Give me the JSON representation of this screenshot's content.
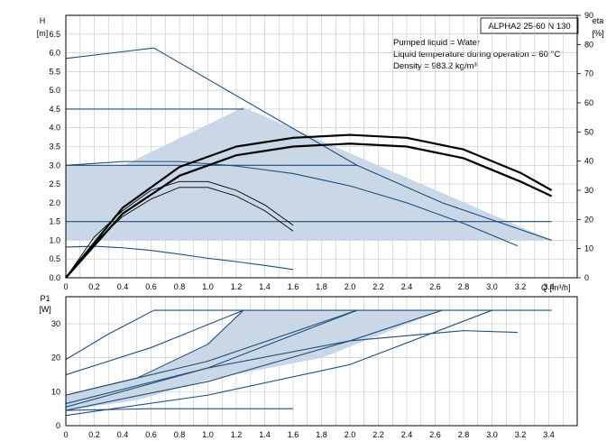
{
  "chart_data": [
    {
      "type": "line",
      "title": "ALPHA2 25-60 N 130",
      "annotations": [
        "Pumped liquid = Water",
        "Liquid temperature during operation = 60 °C",
        "Density = 983.2 kg/m³"
      ],
      "xlabel": "Q [m³/h]",
      "ylabel": "H",
      "ylabel_unit": "[m]",
      "y2label": "eta",
      "y2label_unit": "[%]",
      "xlim": [
        0,
        3.6
      ],
      "ylim": [
        0,
        7.0
      ],
      "y2lim": [
        0,
        90
      ],
      "x_ticks": [
        "0",
        "0.2",
        "0.4",
        "0.6",
        "0.8",
        "1.0",
        "1.2",
        "1.4",
        "1.6",
        "1.8",
        "2.0",
        "2.2",
        "2.4",
        "2.6",
        "2.8",
        "3.0",
        "3.2",
        "3.4"
      ],
      "y_ticks": [
        "0.0",
        "0.5",
        "1.0",
        "1.5",
        "2.0",
        "2.5",
        "3.0",
        "3.5",
        "4.0",
        "4.5",
        "5.0",
        "5.5",
        "6.0",
        "6.5"
      ],
      "y2_ticks": [
        "0",
        "10",
        "20",
        "30",
        "40",
        "50",
        "60",
        "70",
        "80",
        "90"
      ],
      "grid": true,
      "shaded_regions": [
        {
          "name": "",
          "x": [
            0,
            1.25,
            3.42,
            0
          ],
          "y": [
            2.25,
            4.55,
            1.0,
            1.0
          ]
        },
        {
          "name": "",
          "x": [
            0,
            2.05,
            0
          ],
          "y": [
            1.55,
            3.0,
            3.0
          ]
        }
      ],
      "series": [
        {
          "x": [
            0,
            0.62
          ],
          "y": [
            5.85,
            6.13
          ],
          "axis": "H"
        },
        {
          "x": [
            0.62,
            1.5,
            2.05,
            2.65,
            3.42
          ],
          "y": [
            6.13,
            4.2,
            3.0,
            2.0,
            1.0
          ],
          "axis": "H"
        },
        {
          "x": [
            0,
            1.25
          ],
          "y": [
            4.5,
            4.5
          ],
          "axis": "H"
        },
        {
          "x": [
            0,
            2.05
          ],
          "y": [
            3.0,
            3.0
          ],
          "axis": "H"
        },
        {
          "x": [
            0,
            3.42
          ],
          "y": [
            1.5,
            1.5
          ],
          "axis": "H"
        },
        {
          "x": [
            0,
            0.4,
            0.8,
            1.2,
            1.6,
            2.0,
            2.4,
            2.8,
            3.18
          ],
          "y": [
            3.0,
            3.1,
            3.1,
            2.98,
            2.78,
            2.45,
            2.0,
            1.45,
            0.85
          ],
          "axis": "H"
        },
        {
          "x": [
            0,
            0.2,
            0.4,
            0.6,
            0.8,
            1.0,
            1.2,
            1.4,
            1.6
          ],
          "y": [
            0.82,
            0.84,
            0.8,
            0.73,
            0.63,
            0.52,
            0.43,
            0.33,
            0.22
          ],
          "axis": "H"
        },
        {
          "x": [
            0,
            0.2,
            0.4,
            0.6,
            0.8,
            1.0,
            1.2,
            1.4,
            1.6
          ],
          "y": [
            0,
            14,
            23,
            30,
            33,
            33,
            30,
            25,
            18
          ],
          "axis": "eta"
        },
        {
          "x": [
            0,
            0.2,
            0.4,
            0.6,
            0.8,
            1.0,
            1.2,
            1.4,
            1.6
          ],
          "y": [
            0,
            12,
            21,
            27,
            31,
            31,
            28,
            23,
            16
          ],
          "axis": "eta"
        },
        {
          "x": [
            0,
            0.4,
            0.8,
            1.2,
            1.6,
            2.0,
            2.4,
            2.8,
            3.2,
            3.42
          ],
          "y": [
            0,
            24,
            38,
            45,
            48,
            49,
            48,
            44,
            36,
            30
          ],
          "axis": "eta"
        },
        {
          "x": [
            0,
            0.4,
            0.8,
            1.2,
            1.6,
            2.0,
            2.4,
            2.8,
            3.2,
            3.42
          ],
          "y": [
            0,
            22,
            35,
            42,
            45,
            46,
            45,
            41,
            33,
            28
          ],
          "axis": "eta"
        }
      ]
    },
    {
      "type": "line",
      "xlabel": "",
      "ylabel": "P1",
      "ylabel_unit": "[W]",
      "xlim": [
        0,
        3.6
      ],
      "ylim": [
        0,
        38
      ],
      "x_ticks": [
        "0",
        "0.2",
        "0.4",
        "0.6",
        "0.8",
        "1.0",
        "1.2",
        "1.4",
        "1.6",
        "1.8",
        "2.0",
        "2.2",
        "2.4",
        "2.6",
        "2.8",
        "3.0",
        "3.2",
        "3.4"
      ],
      "y_ticks": [
        "0",
        "10",
        "20",
        "30"
      ],
      "grid": true,
      "shaded_regions": [
        {
          "name": "",
          "x": [
            0,
            0.5,
            1.0,
            1.25,
            2.05,
            2.65,
            1.8,
            1.0,
            0.5,
            0
          ],
          "y": [
            9,
            14,
            24,
            34,
            34,
            34,
            20,
            13.5,
            7.5,
            4.5
          ]
        }
      ],
      "series": [
        {
          "x": [
            0.62,
            3.42
          ],
          "y": [
            34,
            34
          ]
        },
        {
          "x": [
            0,
            0.3,
            0.62
          ],
          "y": [
            19.5,
            27,
            34
          ]
        },
        {
          "x": [
            0,
            0.6,
            1.25
          ],
          "y": [
            15,
            23,
            34
          ]
        },
        {
          "x": [
            0,
            0.5,
            1.0,
            1.25
          ],
          "y": [
            9,
            14,
            24,
            34
          ]
        },
        {
          "x": [
            0,
            1.0,
            2.05
          ],
          "y": [
            9,
            19,
            34
          ]
        },
        {
          "x": [
            0,
            1.0,
            2.05
          ],
          "y": [
            5.5,
            17,
            34
          ]
        },
        {
          "x": [
            0,
            1.0,
            2.0,
            2.65
          ],
          "y": [
            4.5,
            13,
            25,
            34
          ]
        },
        {
          "x": [
            0,
            1.0,
            2.0,
            3.0
          ],
          "y": [
            3,
            9,
            18,
            34
          ]
        },
        {
          "x": [
            0,
            1.0,
            2.0,
            2.8,
            3.18
          ],
          "y": [
            6.5,
            17,
            25,
            28,
            27.5
          ]
        },
        {
          "x": [
            0,
            0.6,
            1.0,
            1.6
          ],
          "y": [
            4.5,
            5,
            5,
            5
          ]
        }
      ]
    }
  ]
}
